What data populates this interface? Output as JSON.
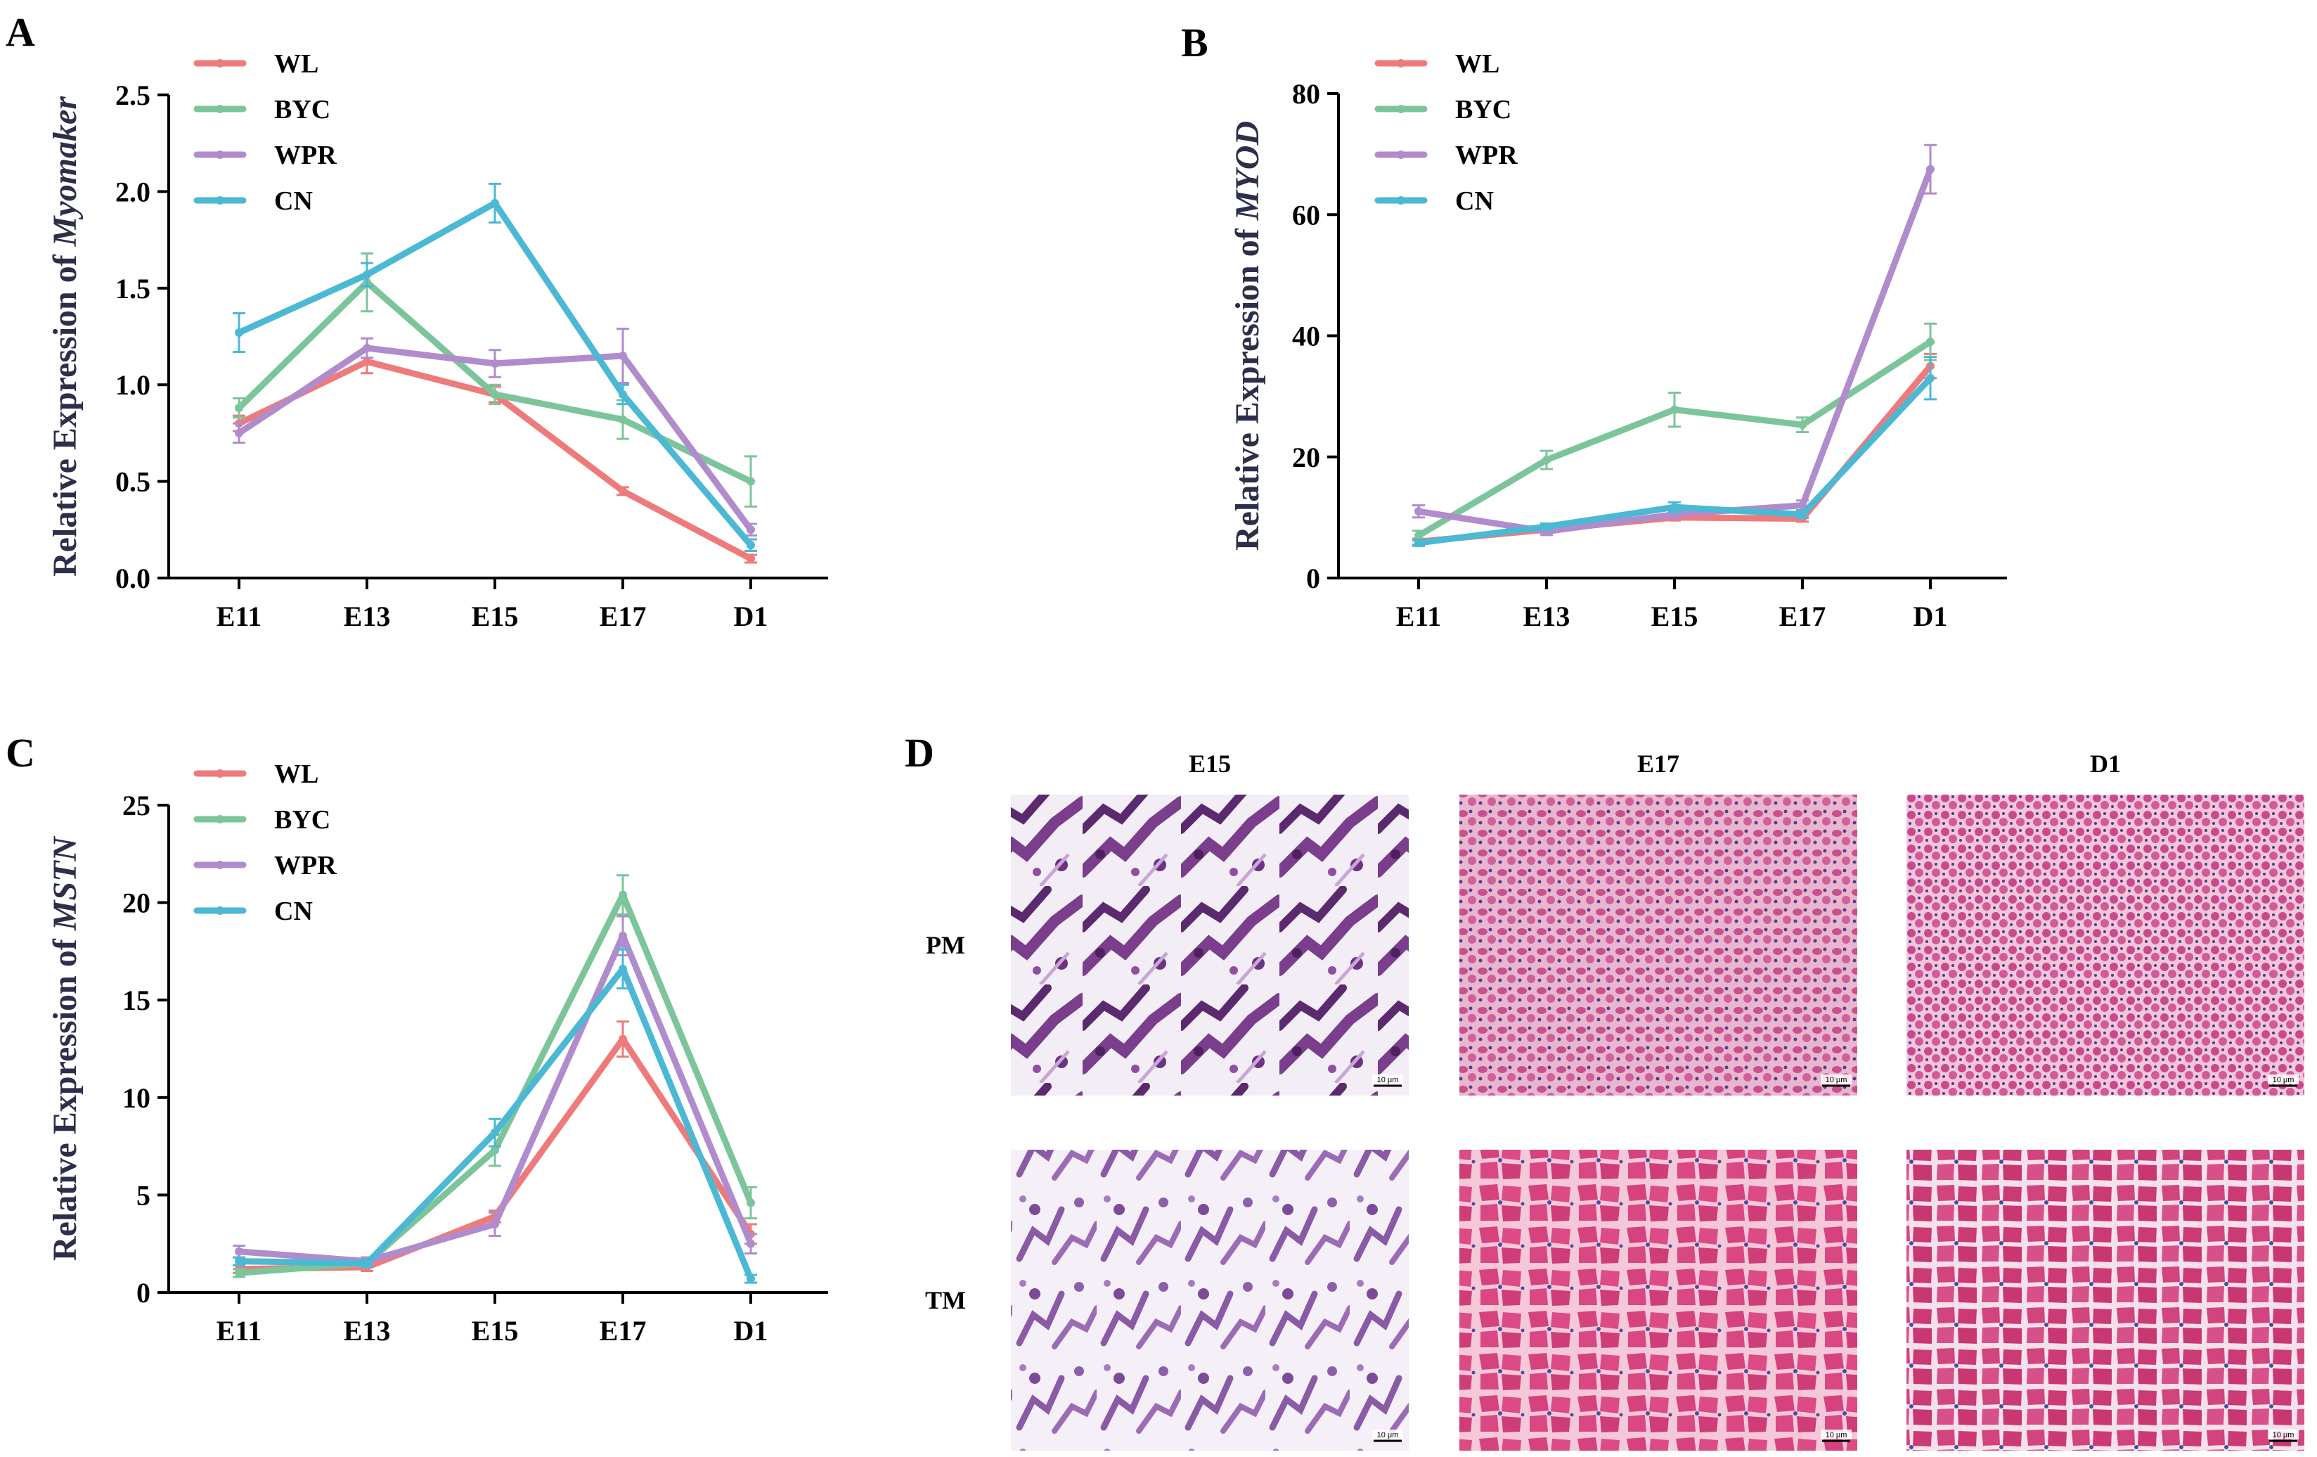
{
  "colors": {
    "WL": "#ee7b7b",
    "BYC": "#7cc59a",
    "WPR": "#b08ccc",
    "CN": "#4bb8d4"
  },
  "chart_data": [
    {
      "panel": "A",
      "type": "line",
      "categories": [
        "E11",
        "E13",
        "E15",
        "E17",
        "D1"
      ],
      "ylabel_prefix": "Relative Expression of ",
      "ylabel_gene": "Myomaker",
      "ylim": [
        0,
        2.5
      ],
      "yticks": [
        "0.0",
        "0.5",
        "1.0",
        "1.5",
        "2.0",
        "2.5"
      ],
      "legend": [
        "WL",
        "BYC",
        "WPR",
        "CN"
      ],
      "series": [
        {
          "name": "WL",
          "values": [
            0.8,
            1.12,
            0.95,
            0.45,
            0.1
          ],
          "errors": [
            0.04,
            0.06,
            0.04,
            0.02,
            0.02
          ]
        },
        {
          "name": "BYC",
          "values": [
            0.88,
            1.53,
            0.95,
            0.82,
            0.5
          ],
          "errors": [
            0.05,
            0.15,
            0.05,
            0.1,
            0.13
          ]
        },
        {
          "name": "WPR",
          "values": [
            0.75,
            1.19,
            1.11,
            1.15,
            0.25
          ],
          "errors": [
            0.05,
            0.05,
            0.07,
            0.14,
            0.03
          ]
        },
        {
          "name": "CN",
          "values": [
            1.27,
            1.57,
            1.94,
            0.95,
            0.17
          ],
          "errors": [
            0.1,
            0.06,
            0.1,
            0.05,
            0.03
          ]
        }
      ]
    },
    {
      "panel": "B",
      "type": "line",
      "categories": [
        "E11",
        "E13",
        "E15",
        "E17",
        "D1"
      ],
      "ylabel_prefix": "Relative Expression of ",
      "ylabel_gene": "MYOD",
      "ylim": [
        0,
        80
      ],
      "yticks": [
        "0",
        "20",
        "40",
        "60",
        "80"
      ],
      "legend": [
        "WL",
        "BYC",
        "WPR",
        "CN"
      ],
      "series": [
        {
          "name": "WL",
          "values": [
            6.0,
            8.0,
            10.0,
            9.8,
            35.0
          ],
          "errors": [
            0.5,
            0.5,
            0.5,
            0.5,
            2.0
          ]
        },
        {
          "name": "BYC",
          "values": [
            7.0,
            19.5,
            27.8,
            25.3,
            39.0
          ],
          "errors": [
            0.8,
            1.5,
            2.8,
            1.2,
            3.0
          ]
        },
        {
          "name": "WPR",
          "values": [
            11.0,
            7.7,
            10.5,
            12.0,
            67.5
          ],
          "errors": [
            1.0,
            0.6,
            0.6,
            0.8,
            4.0
          ]
        },
        {
          "name": "CN",
          "values": [
            5.8,
            8.5,
            11.7,
            10.5,
            33.0
          ],
          "errors": [
            0.5,
            0.5,
            0.8,
            0.6,
            3.5
          ]
        }
      ]
    },
    {
      "panel": "C",
      "type": "line",
      "categories": [
        "E11",
        "E13",
        "E15",
        "E17",
        "D1"
      ],
      "ylabel_prefix": "Relative Expression of ",
      "ylabel_gene": "MSTN",
      "ylim": [
        0,
        25
      ],
      "yticks": [
        "0",
        "5",
        "10",
        "15",
        "20",
        "25"
      ],
      "legend": [
        "WL",
        "BYC",
        "WPR",
        "CN"
      ],
      "series": [
        {
          "name": "WL",
          "values": [
            1.2,
            1.3,
            3.9,
            13.0,
            3.0
          ],
          "errors": [
            0.2,
            0.2,
            0.3,
            0.9,
            0.5
          ]
        },
        {
          "name": "BYC",
          "values": [
            1.0,
            1.5,
            7.3,
            20.4,
            4.6
          ],
          "errors": [
            0.2,
            0.2,
            0.8,
            1.0,
            0.8
          ]
        },
        {
          "name": "WPR",
          "values": [
            2.1,
            1.6,
            3.5,
            18.3,
            2.5
          ],
          "errors": [
            0.3,
            0.2,
            0.6,
            1.0,
            0.5
          ]
        },
        {
          "name": "CN",
          "values": [
            1.6,
            1.5,
            8.2,
            16.6,
            0.7
          ],
          "errors": [
            0.2,
            0.2,
            0.7,
            1.0,
            0.2
          ]
        }
      ]
    }
  ],
  "panel_d": {
    "letter": "D",
    "columns": [
      "E15",
      "E17",
      "D1"
    ],
    "rows": [
      "PM",
      "TM"
    ],
    "scale_bar": "10 μm"
  }
}
